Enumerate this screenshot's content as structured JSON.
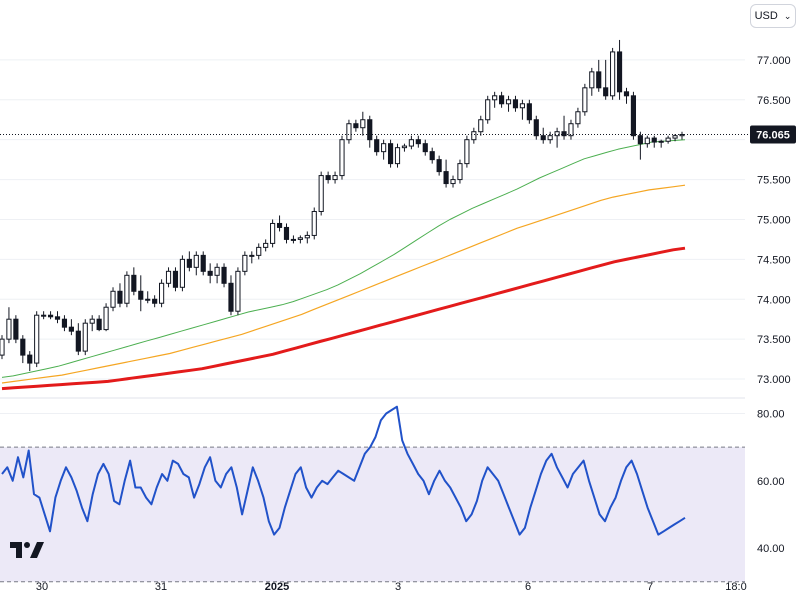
{
  "currency_selector": {
    "label": "USD",
    "icon": "chevron-down-icon"
  },
  "last_price_label": "76.065",
  "colors": {
    "candle_up_fill": "#ffffff",
    "candle_down_fill": "#131722",
    "candle_stroke": "#131722",
    "ma_short": "#4caf50",
    "ma_mid": "#f5a623",
    "ma_long": "#e31b1b",
    "rsi_line": "#2152c9",
    "rsi_band": "#ece9f7",
    "last_price_tag": "#131722"
  },
  "chart_data": [
    {
      "type": "candlestick",
      "ylim": [
        72.8,
        77.5
      ],
      "y_ticks": [
        "73.000",
        "73.500",
        "74.000",
        "74.500",
        "75.000",
        "75.500",
        "76.000",
        "76.500",
        "77.000"
      ],
      "x_ticks": [
        "30",
        "31",
        "2025",
        "3",
        "6",
        "7",
        "18:0"
      ],
      "last_price": 76.065,
      "candles": [
        [
          73.3,
          73.55,
          73.25,
          73.5
        ],
        [
          73.5,
          73.9,
          73.45,
          73.75
        ],
        [
          73.75,
          73.8,
          73.45,
          73.5
        ],
        [
          73.5,
          73.55,
          73.2,
          73.3
        ],
        [
          73.3,
          73.35,
          73.1,
          73.2
        ],
        [
          73.2,
          73.85,
          73.15,
          73.8
        ],
        [
          73.8,
          73.85,
          73.75,
          73.8
        ],
        [
          73.8,
          73.85,
          73.75,
          73.78
        ],
        [
          73.78,
          73.85,
          73.7,
          73.75
        ],
        [
          73.75,
          73.8,
          73.6,
          73.65
        ],
        [
          73.65,
          73.75,
          73.55,
          73.6
        ],
        [
          73.6,
          73.7,
          73.3,
          73.35
        ],
        [
          73.35,
          73.75,
          73.3,
          73.7
        ],
        [
          73.7,
          73.8,
          73.6,
          73.75
        ],
        [
          73.75,
          73.8,
          73.6,
          73.62
        ],
        [
          73.62,
          73.95,
          73.6,
          73.9
        ],
        [
          73.9,
          74.15,
          73.85,
          74.1
        ],
        [
          74.1,
          74.2,
          73.9,
          73.95
        ],
        [
          73.95,
          74.35,
          73.9,
          74.3
        ],
        [
          74.3,
          74.4,
          74.05,
          74.1
        ],
        [
          74.1,
          74.3,
          73.85,
          74.0
        ],
        [
          74.0,
          74.1,
          73.95,
          74.0
        ],
        [
          74.0,
          74.05,
          73.9,
          73.95
        ],
        [
          73.95,
          74.25,
          73.9,
          74.2
        ],
        [
          74.2,
          74.4,
          74.15,
          74.35
        ],
        [
          74.35,
          74.4,
          74.1,
          74.15
        ],
        [
          74.15,
          74.55,
          74.1,
          74.5
        ],
        [
          74.5,
          74.6,
          74.35,
          74.4
        ],
        [
          74.4,
          74.6,
          74.3,
          74.55
        ],
        [
          74.55,
          74.6,
          74.3,
          74.35
        ],
        [
          74.35,
          74.45,
          74.2,
          74.3
        ],
        [
          74.3,
          74.45,
          74.2,
          74.4
        ],
        [
          74.4,
          74.45,
          74.15,
          74.2
        ],
        [
          74.2,
          74.3,
          73.8,
          73.85
        ],
        [
          73.85,
          74.4,
          73.8,
          74.35
        ],
        [
          74.35,
          74.6,
          74.3,
          74.55
        ],
        [
          74.55,
          74.6,
          74.45,
          74.55
        ],
        [
          74.55,
          74.7,
          74.5,
          74.65
        ],
        [
          74.65,
          74.75,
          74.6,
          74.7
        ],
        [
          74.7,
          75.0,
          74.65,
          74.95
        ],
        [
          74.95,
          75.05,
          74.85,
          74.9
        ],
        [
          74.9,
          74.95,
          74.7,
          74.75
        ],
        [
          74.75,
          74.8,
          74.7,
          74.75
        ],
        [
          74.75,
          74.8,
          74.7,
          74.77
        ],
        [
          74.77,
          74.85,
          74.7,
          74.8
        ],
        [
          74.8,
          75.15,
          74.75,
          75.1
        ],
        [
          75.1,
          75.6,
          75.05,
          75.55
        ],
        [
          75.55,
          75.6,
          75.45,
          75.5
        ],
        [
          75.5,
          75.6,
          75.45,
          75.55
        ],
        [
          75.55,
          76.05,
          75.5,
          76.0
        ],
        [
          76.0,
          76.25,
          75.95,
          76.2
        ],
        [
          76.2,
          76.25,
          76.1,
          76.15
        ],
        [
          76.15,
          76.35,
          76.05,
          76.25
        ],
        [
          76.25,
          76.3,
          75.9,
          76.0
        ],
        [
          76.0,
          76.05,
          75.8,
          75.85
        ],
        [
          75.85,
          76.0,
          75.75,
          75.95
        ],
        [
          75.95,
          76.0,
          75.65,
          75.7
        ],
        [
          75.7,
          75.95,
          75.65,
          75.9
        ],
        [
          75.9,
          75.95,
          75.85,
          75.92
        ],
        [
          75.92,
          76.05,
          75.88,
          76.0
        ],
        [
          76.0,
          76.05,
          75.9,
          75.95
        ],
        [
          75.95,
          76.0,
          75.8,
          75.85
        ],
        [
          75.85,
          75.9,
          75.7,
          75.75
        ],
        [
          75.75,
          75.8,
          75.55,
          75.6
        ],
        [
          75.6,
          75.75,
          75.4,
          75.45
        ],
        [
          75.45,
          75.55,
          75.4,
          75.5
        ],
        [
          75.5,
          75.75,
          75.45,
          75.7
        ],
        [
          75.7,
          76.05,
          75.65,
          76.0
        ],
        [
          76.0,
          76.15,
          75.95,
          76.1
        ],
        [
          76.1,
          76.3,
          76.05,
          76.25
        ],
        [
          76.25,
          76.55,
          76.2,
          76.5
        ],
        [
          76.5,
          76.6,
          76.4,
          76.55
        ],
        [
          76.55,
          76.6,
          76.4,
          76.45
        ],
        [
          76.45,
          76.55,
          76.35,
          76.5
        ],
        [
          76.5,
          76.55,
          76.35,
          76.4
        ],
        [
          76.4,
          76.5,
          76.25,
          76.45
        ],
        [
          76.45,
          76.5,
          76.2,
          76.25
        ],
        [
          76.25,
          76.3,
          76.0,
          76.05
        ],
        [
          76.05,
          76.15,
          75.95,
          76.0
        ],
        [
          76.0,
          76.1,
          75.95,
          76.05
        ],
        [
          76.05,
          76.15,
          75.9,
          76.1
        ],
        [
          76.1,
          76.3,
          76.0,
          76.05
        ],
        [
          76.05,
          76.25,
          76.0,
          76.2
        ],
        [
          76.2,
          76.4,
          76.15,
          76.35
        ],
        [
          76.35,
          76.7,
          76.3,
          76.65
        ],
        [
          76.65,
          76.9,
          76.55,
          76.85
        ],
        [
          76.85,
          77.0,
          76.6,
          76.65
        ],
        [
          76.65,
          77.0,
          76.5,
          76.55
        ],
        [
          76.55,
          77.15,
          76.5,
          77.1
        ],
        [
          77.1,
          77.25,
          76.5,
          76.6
        ],
        [
          76.6,
          76.65,
          76.45,
          76.55
        ],
        [
          76.55,
          76.6,
          76.0,
          76.05
        ],
        [
          76.05,
          76.1,
          75.75,
          75.95
        ],
        [
          75.95,
          76.05,
          75.9,
          76.02
        ],
        [
          76.02,
          76.05,
          75.9,
          75.97
        ],
        [
          75.97,
          76.0,
          75.9,
          75.98
        ],
        [
          75.98,
          76.05,
          75.95,
          76.02
        ],
        [
          76.02,
          76.07,
          75.98,
          76.05
        ],
        [
          76.05,
          76.1,
          76.0,
          76.065
        ]
      ],
      "moving_averages": [
        {
          "values": [
            73.02,
            73.04,
            73.07,
            73.1,
            73.13,
            73.16,
            73.2,
            73.24,
            73.28,
            73.32,
            73.36,
            73.4,
            73.44,
            73.48,
            73.52,
            73.56,
            73.6,
            73.64,
            73.68,
            73.72,
            73.76,
            73.8,
            73.84,
            73.87,
            73.9,
            73.93,
            73.97,
            74.02,
            74.07,
            74.12,
            74.18,
            74.25,
            74.32,
            74.4,
            74.48,
            74.56,
            74.65,
            74.74,
            74.83,
            74.92,
            75.0,
            75.07,
            75.14,
            75.2,
            75.26,
            75.32,
            75.38,
            75.45,
            75.52,
            75.58,
            75.64,
            75.7,
            75.76,
            75.8,
            75.84,
            75.88,
            75.91,
            75.94,
            75.97,
            75.98,
            75.99,
            76.0
          ]
        },
        {
          "values": [
            72.95,
            72.97,
            72.99,
            73.01,
            73.03,
            73.05,
            73.08,
            73.11,
            73.14,
            73.17,
            73.2,
            73.23,
            73.26,
            73.29,
            73.32,
            73.36,
            73.4,
            73.44,
            73.48,
            73.52,
            73.56,
            73.61,
            73.66,
            73.71,
            73.76,
            73.81,
            73.87,
            73.93,
            73.99,
            74.05,
            74.11,
            74.17,
            74.23,
            74.29,
            74.35,
            74.41,
            74.47,
            74.53,
            74.59,
            74.65,
            74.71,
            74.77,
            74.83,
            74.89,
            74.94,
            74.99,
            75.04,
            75.09,
            75.14,
            75.19,
            75.24,
            75.28,
            75.31,
            75.34,
            75.37,
            75.39,
            75.41,
            75.43
          ]
        },
        {
          "values": [
            72.88,
            72.89,
            72.9,
            72.91,
            72.92,
            72.93,
            72.94,
            72.95,
            72.96,
            72.97,
            72.99,
            73.01,
            73.03,
            73.05,
            73.07,
            73.09,
            73.11,
            73.13,
            73.16,
            73.19,
            73.22,
            73.25,
            73.28,
            73.31,
            73.35,
            73.39,
            73.43,
            73.47,
            73.51,
            73.55,
            73.59,
            73.63,
            73.67,
            73.71,
            73.75,
            73.79,
            73.83,
            73.87,
            73.91,
            73.95,
            73.99,
            74.03,
            74.07,
            74.11,
            74.15,
            74.19,
            74.23,
            74.27,
            74.31,
            74.35,
            74.39,
            74.43,
            74.47,
            74.5,
            74.53,
            74.56,
            74.59,
            74.62,
            74.64
          ]
        }
      ]
    },
    {
      "type": "line",
      "indicator": "RSI",
      "ylim": [
        32,
        84
      ],
      "y_ticks": [
        "40.00",
        "60.00",
        "80.00"
      ],
      "band": [
        30,
        70
      ],
      "values": [
        62,
        64,
        60,
        67,
        61,
        69,
        56,
        55,
        50,
        45,
        55,
        60,
        64,
        61,
        57,
        52,
        48,
        56,
        62,
        65,
        62,
        54,
        53,
        60,
        66,
        58,
        58,
        55,
        53,
        58,
        62,
        60,
        66,
        65,
        62,
        61,
        55,
        59,
        64,
        67,
        60,
        58,
        62,
        64,
        58,
        50,
        57,
        64,
        60,
        55,
        48,
        44,
        46,
        52,
        57,
        62,
        64,
        58,
        55,
        58,
        60,
        59,
        61,
        63,
        62,
        61,
        60,
        64,
        68,
        70,
        73,
        78,
        80,
        81,
        82,
        72,
        68,
        65,
        62,
        60,
        56,
        60,
        63,
        60,
        58,
        55,
        52,
        48,
        50,
        54,
        60,
        64,
        62,
        60,
        56,
        52,
        48,
        44,
        46,
        52,
        57,
        62,
        66,
        68,
        64,
        61,
        58,
        62,
        64,
        66,
        60,
        55,
        50,
        48,
        52,
        55,
        60,
        64,
        66,
        62,
        57,
        52,
        48,
        44,
        45,
        46,
        47,
        48,
        49
      ]
    }
  ]
}
